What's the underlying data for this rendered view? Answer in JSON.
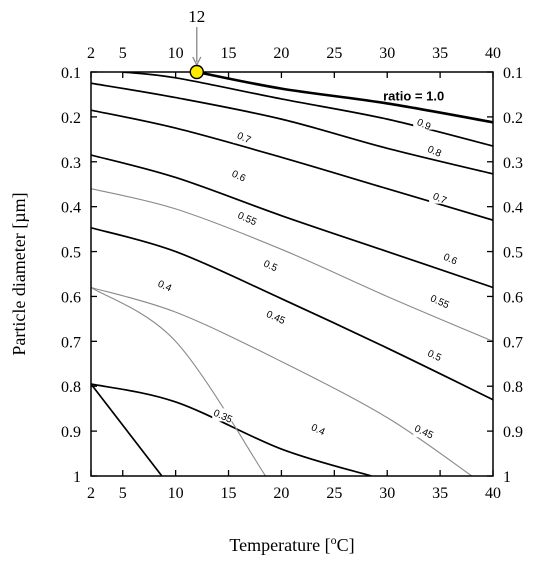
{
  "chart_data": {
    "type": "line",
    "chart_kind": "contour",
    "xlabel": "Temperature [",
    "xlabel_sup": "o",
    "xlabel_unit": "C]",
    "ylabel": "Particle diameter [µm]",
    "xlim": [
      2,
      40
    ],
    "ylim": [
      0.1,
      1
    ],
    "y_inverted": true,
    "x_ticks": [
      "2",
      "5",
      "10",
      "15",
      "20",
      "25",
      "30",
      "35",
      "40"
    ],
    "x_tick_values": [
      2,
      5,
      10,
      15,
      20,
      25,
      30,
      35,
      40
    ],
    "y_ticks": [
      "0.1",
      "0.2",
      "0.3",
      "0.4",
      "0.5",
      "0.6",
      "0.7",
      "0.8",
      "0.9",
      "1"
    ],
    "y_tick_values": [
      0.1,
      0.2,
      0.3,
      0.4,
      0.5,
      0.6,
      0.7,
      0.8,
      0.9,
      1.0
    ],
    "mirrored_axes": true,
    "grid": false,
    "colors": {
      "major_line": "#000000",
      "minor_line": "#8a8a8a",
      "marker_fill": "#ffeb00",
      "marker_stroke": "#000000",
      "arrow": "#888888"
    },
    "series": [
      {
        "name": "ratio = 1.0",
        "label": "ratio = 1.0",
        "level": 1.0,
        "style": "major",
        "x": [
          12,
          20,
          30,
          40
        ],
        "y": [
          0.1,
          0.137,
          0.17,
          0.212
        ]
      },
      {
        "name": "0.9",
        "label": "0.9",
        "level": 0.9,
        "style": "major",
        "x": [
          5,
          10,
          20,
          30,
          40
        ],
        "y": [
          0.1,
          0.113,
          0.16,
          0.205,
          0.265
        ]
      },
      {
        "name": "0.8",
        "label": "0.8",
        "level": 0.8,
        "style": "major",
        "x": [
          2,
          10,
          20,
          30,
          40
        ],
        "y": [
          0.125,
          0.157,
          0.205,
          0.27,
          0.327
        ]
      },
      {
        "name": "0.7",
        "label": "0.7",
        "level": 0.7,
        "style": "major",
        "x": [
          2,
          10,
          20,
          30,
          40
        ],
        "y": [
          0.185,
          0.225,
          0.29,
          0.36,
          0.43
        ]
      },
      {
        "name": "0.6",
        "label": "0.6",
        "level": 0.6,
        "style": "major",
        "x": [
          2,
          10,
          20,
          30,
          40
        ],
        "y": [
          0.285,
          0.335,
          0.42,
          0.5,
          0.58
        ]
      },
      {
        "name": "0.55",
        "label": "0.55",
        "level": 0.55,
        "style": "minor",
        "x": [
          2,
          10,
          20,
          30,
          40
        ],
        "y": [
          0.36,
          0.405,
          0.495,
          0.6,
          0.7
        ]
      },
      {
        "name": "0.5",
        "label": "0.5",
        "level": 0.5,
        "style": "major",
        "x": [
          2,
          10,
          20,
          30,
          40
        ],
        "y": [
          0.447,
          0.5,
          0.605,
          0.715,
          0.83
        ]
      },
      {
        "name": "0.45",
        "label": "0.45",
        "level": 0.45,
        "style": "minor",
        "x": [
          2,
          10,
          20,
          30,
          38
        ],
        "y": [
          0.58,
          0.635,
          0.745,
          0.87,
          1.0
        ]
      },
      {
        "name": "0.4",
        "label": "0.4",
        "level": 0.4,
        "style": "major",
        "x": [
          2,
          10,
          20,
          28.5
        ],
        "y": [
          0.795,
          0.835,
          0.94,
          1.0
        ]
      },
      {
        "name": "0.35",
        "label": "0.35",
        "level": 0.35,
        "style": "minor",
        "x": [
          2,
          10,
          18.5
        ],
        "y": [
          0.58,
          0.7,
          1.0
        ]
      },
      {
        "name": "",
        "label": "",
        "level": 0.3,
        "style": "major",
        "x": [
          2,
          8.7
        ],
        "y": [
          0.795,
          1.0
        ]
      }
    ],
    "contour_labels": [
      {
        "text": "ratio = 1.0",
        "x": 32.5,
        "y": 0.155,
        "bold": true
      },
      {
        "text": "0.9",
        "x": 33.5,
        "y": 0.215
      },
      {
        "text": "0.8",
        "x": 34.5,
        "y": 0.275
      },
      {
        "text": "0.7",
        "x": 35.0,
        "y": 0.38
      },
      {
        "text": "0.7",
        "x": 16.5,
        "y": 0.245
      },
      {
        "text": "0.6",
        "x": 16.0,
        "y": 0.33
      },
      {
        "text": "0.6",
        "x": 36.0,
        "y": 0.515
      },
      {
        "text": "0.55",
        "x": 16.8,
        "y": 0.425
      },
      {
        "text": "0.55",
        "x": 35.0,
        "y": 0.61
      },
      {
        "text": "0.5",
        "x": 19.0,
        "y": 0.53
      },
      {
        "text": "0.5",
        "x": 34.5,
        "y": 0.73
      },
      {
        "text": "0.45",
        "x": 19.5,
        "y": 0.645
      },
      {
        "text": "0.45",
        "x": 33.5,
        "y": 0.9
      },
      {
        "text": "0.4",
        "x": 9.0,
        "y": 0.575
      },
      {
        "text": "0.4",
        "x": 23.5,
        "y": 0.895
      },
      {
        "text": "0.35",
        "x": 14.5,
        "y": 0.865
      }
    ],
    "marker": {
      "x": 12,
      "y": 0.1,
      "label": "12"
    }
  }
}
